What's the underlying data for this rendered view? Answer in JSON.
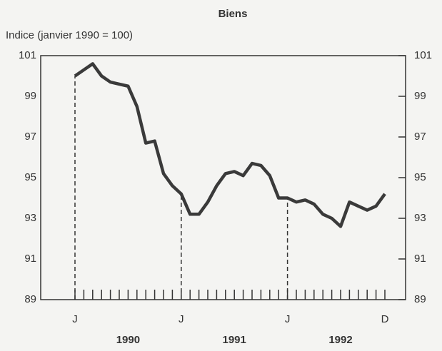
{
  "chart_data": {
    "type": "line",
    "title": "Biens",
    "y_label": "Indice (janvier 1990 = 100)",
    "categories": [
      "J",
      null,
      null,
      null,
      null,
      null,
      null,
      null,
      null,
      null,
      null,
      null,
      "J",
      null,
      null,
      null,
      null,
      null,
      null,
      null,
      null,
      null,
      null,
      null,
      "J",
      null,
      null,
      null,
      null,
      null,
      null,
      null,
      null,
      null,
      null,
      "D"
    ],
    "year_labels": [
      "1990",
      "1991",
      "1992"
    ],
    "values": [
      100.0,
      100.3,
      100.6,
      100.0,
      99.7,
      99.6,
      99.5,
      98.5,
      96.7,
      96.8,
      95.2,
      94.6,
      94.2,
      93.2,
      93.2,
      93.8,
      94.6,
      95.2,
      95.3,
      95.1,
      95.7,
      95.6,
      95.1,
      94.0,
      94.0,
      93.8,
      93.9,
      93.7,
      93.2,
      93.0,
      92.6,
      93.8,
      93.6,
      93.4,
      93.6,
      94.2
    ],
    "color": "#3a3a3a",
    "ylim": [
      89,
      101
    ],
    "yticks": [
      89,
      91,
      93,
      95,
      97,
      99,
      101
    ],
    "y_ticks_both_sides": true,
    "drop_lines": true
  }
}
